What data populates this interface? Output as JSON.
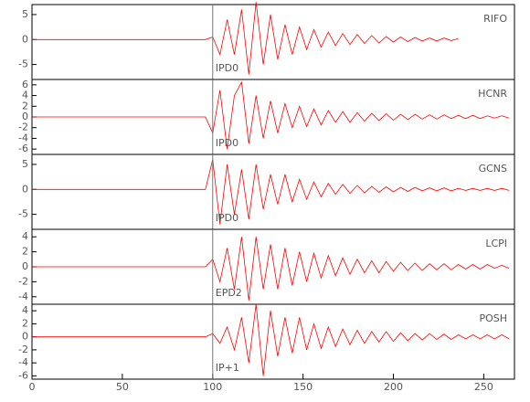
{
  "chart_data": [
    {
      "type": "line",
      "station": "RIFO",
      "pick_label": "IPD0",
      "pick": 100,
      "color": "#ff0000",
      "xlim": [
        0,
        267
      ],
      "ylim": [
        -8,
        7
      ],
      "yticks": [
        5,
        0,
        -5
      ],
      "x": [
        0,
        4,
        8,
        12,
        16,
        20,
        24,
        28,
        32,
        36,
        40,
        44,
        48,
        52,
        56,
        60,
        64,
        68,
        72,
        76,
        80,
        84,
        88,
        92,
        96,
        100,
        104,
        108,
        112,
        116,
        120,
        124,
        128,
        132,
        136,
        140,
        144,
        148,
        152,
        156,
        160,
        164,
        168,
        172,
        176,
        180,
        184,
        188,
        192,
        196,
        200,
        204,
        208,
        212,
        216,
        220,
        224,
        228,
        232,
        236,
        240,
        244,
        248,
        252,
        256,
        260,
        264
      ],
      "values": [
        0,
        0,
        0,
        0,
        0,
        0,
        0,
        0,
        0,
        0,
        0,
        0,
        0,
        0,
        0,
        0,
        0,
        0,
        0,
        0,
        0,
        0,
        0,
        0,
        0,
        0.5,
        -3,
        4,
        -3,
        6,
        -7,
        7.5,
        -5,
        5,
        -4,
        3,
        -3,
        2.5,
        -2,
        2,
        -1.5,
        1.5,
        -1.2,
        1.2,
        -1,
        1,
        -0.8,
        0.8,
        -0.7,
        0.6,
        -0.5,
        0.5,
        -0.4,
        0.4,
        -0.3,
        0.3,
        -0.3,
        0.3,
        -0.2,
        0.2,
        null,
        null,
        null,
        null,
        null,
        null,
        null
      ]
    },
    {
      "type": "line",
      "station": "HCNR",
      "pick_label": "IPD0",
      "pick": 100,
      "color": "#ff0000",
      "xlim": [
        0,
        267
      ],
      "ylim": [
        -7,
        7
      ],
      "yticks": [
        6,
        4,
        2,
        0,
        -2,
        -4,
        -6
      ],
      "x": [
        0,
        4,
        8,
        12,
        16,
        20,
        24,
        28,
        32,
        36,
        40,
        44,
        48,
        52,
        56,
        60,
        64,
        68,
        72,
        76,
        80,
        84,
        88,
        92,
        96,
        100,
        104,
        108,
        112,
        116,
        120,
        124,
        128,
        132,
        136,
        140,
        144,
        148,
        152,
        156,
        160,
        164,
        168,
        172,
        176,
        180,
        184,
        188,
        192,
        196,
        200,
        204,
        208,
        212,
        216,
        220,
        224,
        228,
        232,
        236,
        240,
        244,
        248,
        252,
        256,
        260,
        264
      ],
      "values": [
        0,
        0,
        0,
        0,
        0,
        0,
        0,
        0,
        0,
        0,
        0,
        0,
        0,
        0,
        0,
        0,
        0,
        0,
        0,
        0,
        0,
        0,
        0,
        0,
        0,
        -3,
        5,
        -6,
        4,
        6.5,
        -5,
        4,
        -4,
        3,
        -3,
        2.5,
        -2,
        2,
        -1.8,
        1.5,
        -1.5,
        1.2,
        -1,
        1,
        -1,
        0.8,
        -0.8,
        0.7,
        -0.7,
        0.6,
        -0.6,
        0.5,
        -0.5,
        0.5,
        -0.4,
        0.4,
        -0.4,
        0.4,
        -0.3,
        0.3,
        -0.3,
        0.3,
        -0.3,
        0.2,
        -0.2,
        0.2,
        -0.2
      ]
    },
    {
      "type": "line",
      "station": "GCNS",
      "pick_label": "IPD0",
      "pick": 100,
      "color": "#ff0000",
      "xlim": [
        0,
        267
      ],
      "ylim": [
        -8,
        7
      ],
      "yticks": [
        5,
        0,
        -5
      ],
      "x": [
        0,
        4,
        8,
        12,
        16,
        20,
        24,
        28,
        32,
        36,
        40,
        44,
        48,
        52,
        56,
        60,
        64,
        68,
        72,
        76,
        80,
        84,
        88,
        92,
        96,
        100,
        104,
        108,
        112,
        116,
        120,
        124,
        128,
        132,
        136,
        140,
        144,
        148,
        152,
        156,
        160,
        164,
        168,
        172,
        176,
        180,
        184,
        188,
        192,
        196,
        200,
        204,
        208,
        212,
        216,
        220,
        224,
        228,
        232,
        236,
        240,
        244,
        248,
        252,
        256,
        260,
        264
      ],
      "values": [
        0,
        0,
        0,
        0,
        0,
        0,
        0,
        0,
        0,
        0,
        0,
        0,
        0,
        0,
        0,
        0,
        0,
        0,
        0,
        0,
        0,
        0,
        0,
        0,
        0,
        6,
        -7,
        5,
        -5,
        4,
        -6,
        5,
        -4,
        3,
        -3,
        3,
        -2.5,
        2,
        -2,
        1.5,
        -1.5,
        1.2,
        -1,
        1,
        -0.8,
        0.8,
        -0.7,
        0.6,
        -0.6,
        0.5,
        -0.5,
        0.4,
        -0.4,
        0.4,
        -0.3,
        0.3,
        -0.3,
        0.3,
        -0.3,
        0.2,
        -0.2,
        0.2,
        -0.2,
        0.2,
        -0.2,
        0.2,
        -0.2
      ]
    },
    {
      "type": "line",
      "station": "LCPI",
      "pick_label": "EPD2",
      "pick": 100,
      "color": "#ff0000",
      "xlim": [
        0,
        267
      ],
      "ylim": [
        -5,
        5
      ],
      "yticks": [
        4,
        2,
        0,
        -2,
        -4
      ],
      "x": [
        0,
        4,
        8,
        12,
        16,
        20,
        24,
        28,
        32,
        36,
        40,
        44,
        48,
        52,
        56,
        60,
        64,
        68,
        72,
        76,
        80,
        84,
        88,
        92,
        96,
        100,
        104,
        108,
        112,
        116,
        120,
        124,
        128,
        132,
        136,
        140,
        144,
        148,
        152,
        156,
        160,
        164,
        168,
        172,
        176,
        180,
        184,
        188,
        192,
        196,
        200,
        204,
        208,
        212,
        216,
        220,
        224,
        228,
        232,
        236,
        240,
        244,
        248,
        252,
        256,
        260,
        264
      ],
      "values": [
        0,
        0,
        0,
        0,
        0,
        0,
        0,
        0,
        0,
        0,
        0,
        0,
        0,
        0,
        0,
        0,
        0,
        0,
        0,
        0,
        0,
        0,
        0,
        0,
        0,
        1,
        -2,
        2.5,
        -3,
        4,
        -4.5,
        4,
        -3,
        3,
        -3,
        2.5,
        -2.5,
        2,
        -2,
        1.8,
        -1.5,
        1.5,
        -1.2,
        1.2,
        -1,
        1,
        -0.8,
        0.8,
        -0.8,
        0.7,
        -0.6,
        0.6,
        -0.5,
        0.5,
        -0.5,
        0.4,
        -0.4,
        0.4,
        -0.4,
        0.3,
        -0.3,
        0.3,
        -0.3,
        0.3,
        -0.2,
        0.2,
        -0.2
      ]
    },
    {
      "type": "line",
      "station": "POSH",
      "pick_label": "IP+1",
      "pick": 100,
      "color": "#ff0000",
      "xlim": [
        0,
        267
      ],
      "ylim": [
        -6.5,
        5
      ],
      "yticks": [
        4,
        2,
        0,
        -2,
        -4,
        -6
      ],
      "xticks": [
        0,
        50,
        100,
        150,
        200,
        250
      ],
      "x": [
        0,
        4,
        8,
        12,
        16,
        20,
        24,
        28,
        32,
        36,
        40,
        44,
        48,
        52,
        56,
        60,
        64,
        68,
        72,
        76,
        80,
        84,
        88,
        92,
        96,
        100,
        104,
        108,
        112,
        116,
        120,
        124,
        128,
        132,
        136,
        140,
        144,
        148,
        152,
        156,
        160,
        164,
        168,
        172,
        176,
        180,
        184,
        188,
        192,
        196,
        200,
        204,
        208,
        212,
        216,
        220,
        224,
        228,
        232,
        236,
        240,
        244,
        248,
        252,
        256,
        260,
        264
      ],
      "values": [
        0,
        0,
        0,
        0,
        0,
        0,
        0,
        0,
        0,
        0,
        0,
        0,
        0,
        0,
        0,
        0,
        0,
        0,
        0,
        0,
        0,
        0,
        0,
        0,
        0,
        0.5,
        -1,
        1.5,
        -2,
        3,
        -4,
        5,
        -6,
        4,
        -3,
        3,
        -2.5,
        3,
        -2,
        2,
        -1.8,
        1.5,
        -1.5,
        1.2,
        -1.2,
        1,
        -1,
        0.8,
        -0.8,
        0.8,
        -0.7,
        0.6,
        -0.6,
        0.5,
        -0.5,
        0.5,
        -0.4,
        0.4,
        -0.4,
        0.3,
        -0.3,
        0.3,
        -0.3,
        0.3,
        -0.3,
        0.3,
        -0.3
      ]
    }
  ]
}
